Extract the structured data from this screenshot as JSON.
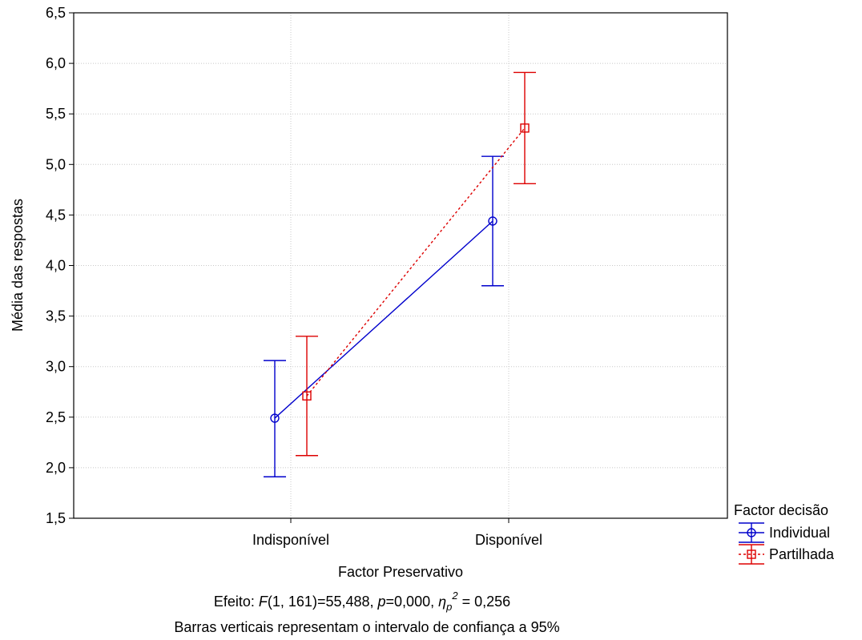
{
  "chart_data": {
    "type": "line",
    "xlabel": "Factor Preservativo",
    "ylabel": "Média das respostas",
    "categories": [
      "Indisponível",
      "Disponível"
    ],
    "ylim": [
      1.5,
      6.5
    ],
    "yticks": [
      "1,5",
      "2,0",
      "2,5",
      "3,0",
      "3,5",
      "4,0",
      "4,5",
      "5,0",
      "5,5",
      "6,0",
      "6,5"
    ],
    "grid": true,
    "legend": {
      "title": "Factor decisão",
      "placement": "bottom-right outside"
    },
    "series": [
      {
        "name": "Individual",
        "color": "#0000cc",
        "marker": "circle",
        "line_style": "solid",
        "values": [
          2.49,
          4.44
        ],
        "ci_low": [
          1.91,
          3.8
        ],
        "ci_high": [
          3.06,
          5.08
        ]
      },
      {
        "name": "Partilhada",
        "color": "#dd0000",
        "marker": "square",
        "line_style": "dotted",
        "values": [
          2.71,
          5.36
        ],
        "ci_low": [
          2.12,
          4.81
        ],
        "ci_high": [
          3.3,
          5.91
        ]
      }
    ],
    "annotations": {
      "effect_prefix": "Efeito: ",
      "effect_F": "F",
      "effect_F_args": "(1, 161)=55,488, ",
      "effect_p": "p",
      "effect_p_val": "=0,000, ",
      "effect_eta": "η",
      "effect_eta_sub": "p",
      "effect_eta_sup": "2",
      "effect_eta_val": " = 0,256",
      "note": "Barras verticais representam o intervalo de confiança a 95%"
    }
  }
}
